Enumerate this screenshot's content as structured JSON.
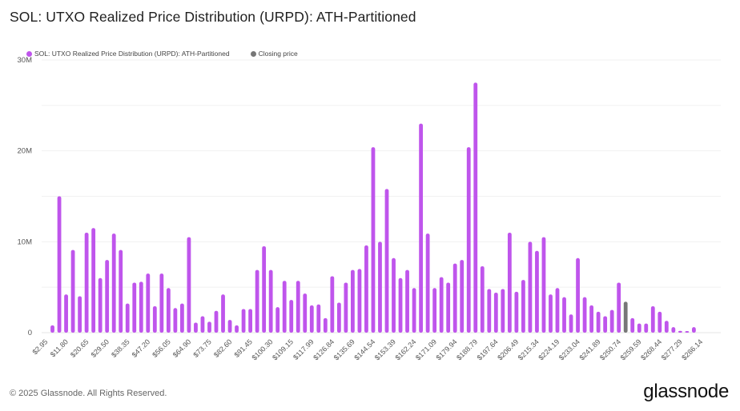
{
  "header": {
    "title": "SOL: UTXO Realized Price Distribution (URPD): ATH-Partitioned"
  },
  "footer": {
    "copyright": "© 2025 Glassnode. All Rights Reserved.",
    "logo": "glassnode"
  },
  "chart_data": {
    "type": "bar",
    "title": "SOL: UTXO Realized Price Distribution (URPD): ATH-Partitioned",
    "xlabel": "",
    "ylabel": "",
    "ylim": [
      0,
      30000000
    ],
    "grid": true,
    "legend_position": "top-left",
    "legend": [
      {
        "name": "SOL: UTXO Realized Price Distribution (URPD): ATH-Partitioned",
        "color": "#bf55ec"
      },
      {
        "name": "Closing price",
        "color": "#777777"
      }
    ],
    "y_ticks": [
      {
        "value": 0,
        "label": "0"
      },
      {
        "value": 10000000,
        "label": "10M"
      },
      {
        "value": 20000000,
        "label": "20M"
      },
      {
        "value": 30000000,
        "label": "30M"
      }
    ],
    "x_tick_labels": [
      "$2.95",
      "$11.80",
      "$20.65",
      "$29.50",
      "$38.35",
      "$47.20",
      "$56.05",
      "$64.90",
      "$73.75",
      "$82.60",
      "$91.45",
      "$100.30",
      "$109.15",
      "$117.99",
      "$126.84",
      "$135.69",
      "$144.54",
      "$153.39",
      "$162.24",
      "$171.09",
      "$179.94",
      "$188.79",
      "$197.64",
      "$206.49",
      "$215.34",
      "$224.19",
      "$233.04",
      "$241.89",
      "$250.74",
      "$259.59",
      "$268.44",
      "$277.29",
      "$286.14"
    ],
    "bucket_start": 2.95,
    "bucket_step": 2.95,
    "closing_price_index": 85,
    "values_millions": [
      0,
      0.8,
      15.0,
      4.2,
      9.1,
      4.0,
      11.0,
      11.5,
      6.0,
      8.0,
      10.9,
      9.1,
      3.2,
      5.5,
      5.6,
      6.5,
      2.9,
      6.5,
      4.9,
      2.7,
      3.2,
      10.5,
      1.1,
      1.8,
      1.2,
      2.4,
      4.2,
      1.4,
      0.8,
      2.6,
      2.6,
      6.9,
      9.5,
      6.9,
      2.8,
      5.7,
      3.6,
      5.7,
      4.3,
      3.0,
      3.1,
      1.6,
      6.2,
      3.3,
      5.5,
      6.9,
      7.0,
      9.6,
      20.4,
      10.0,
      15.8,
      8.2,
      6.0,
      6.9,
      4.9,
      23.0,
      10.9,
      4.9,
      6.1,
      5.5,
      7.6,
      8.0,
      20.4,
      27.5,
      7.3,
      4.8,
      4.4,
      4.8,
      11.0,
      4.5,
      5.8,
      10.0,
      9.0,
      10.5,
      4.2,
      4.9,
      3.9,
      2.0,
      8.2,
      3.9,
      3.0,
      2.3,
      1.8,
      2.5,
      5.5,
      3.4,
      1.6,
      1.0,
      1.0,
      2.9,
      2.3,
      1.3,
      0.6,
      0.2,
      0.1,
      0.6,
      0,
      0,
      0,
      0
    ]
  }
}
